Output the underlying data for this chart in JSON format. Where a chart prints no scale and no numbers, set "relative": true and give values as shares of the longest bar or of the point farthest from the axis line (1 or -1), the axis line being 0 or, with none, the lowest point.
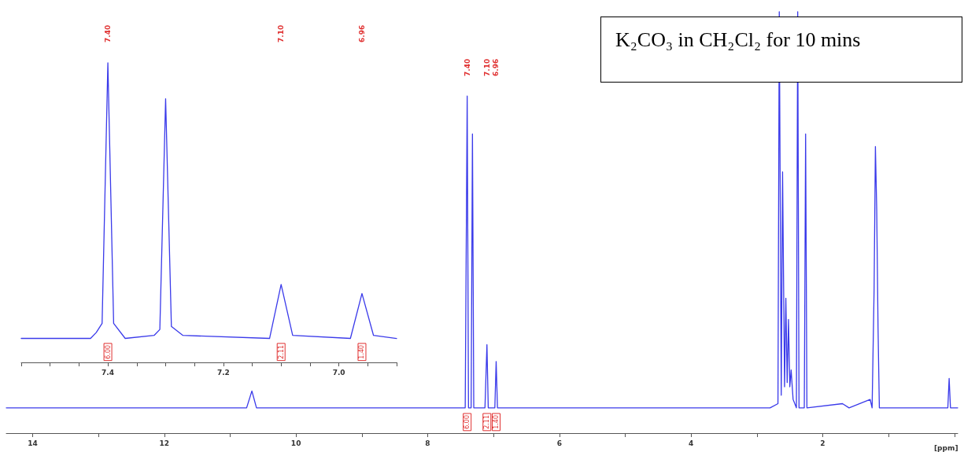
{
  "chart_data": [
    {
      "type": "line",
      "title": "K₂CO₃ in CH₂Cl₂ for 10 mins",
      "xlabel": "[ppm]",
      "relative": true,
      "tick_labels": "x",
      "marker": "none",
      "line_style": "solid",
      "xlim": [
        14.4,
        -0.05
      ],
      "xticks": [
        14,
        {
          "value": 13,
          "label": null
        },
        12,
        {
          "value": 11,
          "label": null
        },
        10,
        {
          "value": 9,
          "label": null
        },
        8,
        {
          "value": 7,
          "label": null
        },
        6,
        {
          "value": 5,
          "label": null
        },
        4,
        {
          "value": 3,
          "label": null
        },
        2,
        {
          "value": 1,
          "label": null
        },
        {
          "value": 0,
          "label": null
        }
      ],
      "series": [
        {
          "color": "#3a3aea",
          "x": [
            14.4,
            10.75,
            10.67,
            10.6,
            7.5,
            7.43,
            7.4,
            7.38,
            7.34,
            7.32,
            7.3,
            7.13,
            7.1,
            7.08,
            6.98,
            6.96,
            6.94,
            2.8,
            2.68,
            2.66,
            2.63,
            2.61,
            2.58,
            2.56,
            2.54,
            2.52,
            2.5,
            2.48,
            2.45,
            2.4,
            2.38,
            2.36,
            2.28,
            2.26,
            2.24,
            1.7,
            1.6,
            1.28,
            1.25,
            1.22,
            1.2,
            1.18,
            1.16,
            1.14,
            0.1,
            0.08,
            0.06,
            -0.05
          ],
          "values": [
            0.06,
            0.06,
            0.1,
            0.06,
            0.06,
            0.06,
            0.8,
            0.06,
            0.06,
            0.71,
            0.06,
            0.06,
            0.21,
            0.06,
            0.06,
            0.17,
            0.06,
            0.06,
            0.07,
            1.0,
            0.09,
            0.62,
            0.11,
            0.32,
            0.12,
            0.27,
            0.11,
            0.15,
            0.08,
            0.06,
            1.0,
            0.06,
            0.06,
            0.71,
            0.06,
            0.07,
            0.06,
            0.08,
            0.06,
            0.34,
            0.68,
            0.53,
            0.25,
            0.06,
            0.06,
            0.13,
            0.06,
            0.06
          ]
        }
      ],
      "x2lim": [
        14.4,
        -0.05
      ],
      "x2ticks": [
        {
          "value": 7.4,
          "label": "7.40"
        },
        {
          "value": 7.1,
          "label": "7.10"
        },
        {
          "value": 6.96,
          "label": "6.96"
        }
      ],
      "annotations": [
        "6.00",
        "2.11",
        "1.40"
      ]
    },
    {
      "type": "line",
      "relative": true,
      "tick_labels": "x",
      "marker": "none",
      "line_style": "solid",
      "xlim": [
        7.55,
        6.9
      ],
      "xticks": [
        {
          "value": 7.55,
          "label": null
        },
        {
          "value": 7.5,
          "label": null
        },
        {
          "value": 7.45,
          "label": null
        },
        7.4,
        {
          "value": 7.35,
          "label": null
        },
        {
          "value": 7.3,
          "label": null
        },
        {
          "value": 7.25,
          "label": null
        },
        7.2,
        {
          "value": 7.15,
          "label": null
        },
        {
          "value": 7.1,
          "label": null
        },
        {
          "value": 7.05,
          "label": null
        },
        {
          "value": 7.0,
          "label": "7.0"
        },
        {
          "value": 6.95,
          "label": null
        },
        {
          "value": 6.9,
          "label": null
        }
      ],
      "series": [
        {
          "color": "#3a3aea",
          "x": [
            7.55,
            7.43,
            7.42,
            7.41,
            7.4,
            7.39,
            7.37,
            7.32,
            7.31,
            7.3,
            7.29,
            7.27,
            7.12,
            7.1,
            7.08,
            6.98,
            6.96,
            6.94,
            6.9
          ],
          "values": [
            0.08,
            0.08,
            0.1,
            0.13,
            1.0,
            0.13,
            0.08,
            0.09,
            0.11,
            0.88,
            0.12,
            0.09,
            0.08,
            0.26,
            0.09,
            0.08,
            0.23,
            0.09,
            0.08
          ]
        }
      ],
      "x2lim": [
        7.55,
        6.9
      ],
      "x2ticks": [
        {
          "value": 7.4,
          "label": "7.40"
        },
        {
          "value": 7.1,
          "label": "7.10"
        },
        {
          "value": 6.96,
          "label": "6.96"
        }
      ],
      "annotations": [
        "6.00",
        "2.11",
        "1.40"
      ]
    }
  ]
}
